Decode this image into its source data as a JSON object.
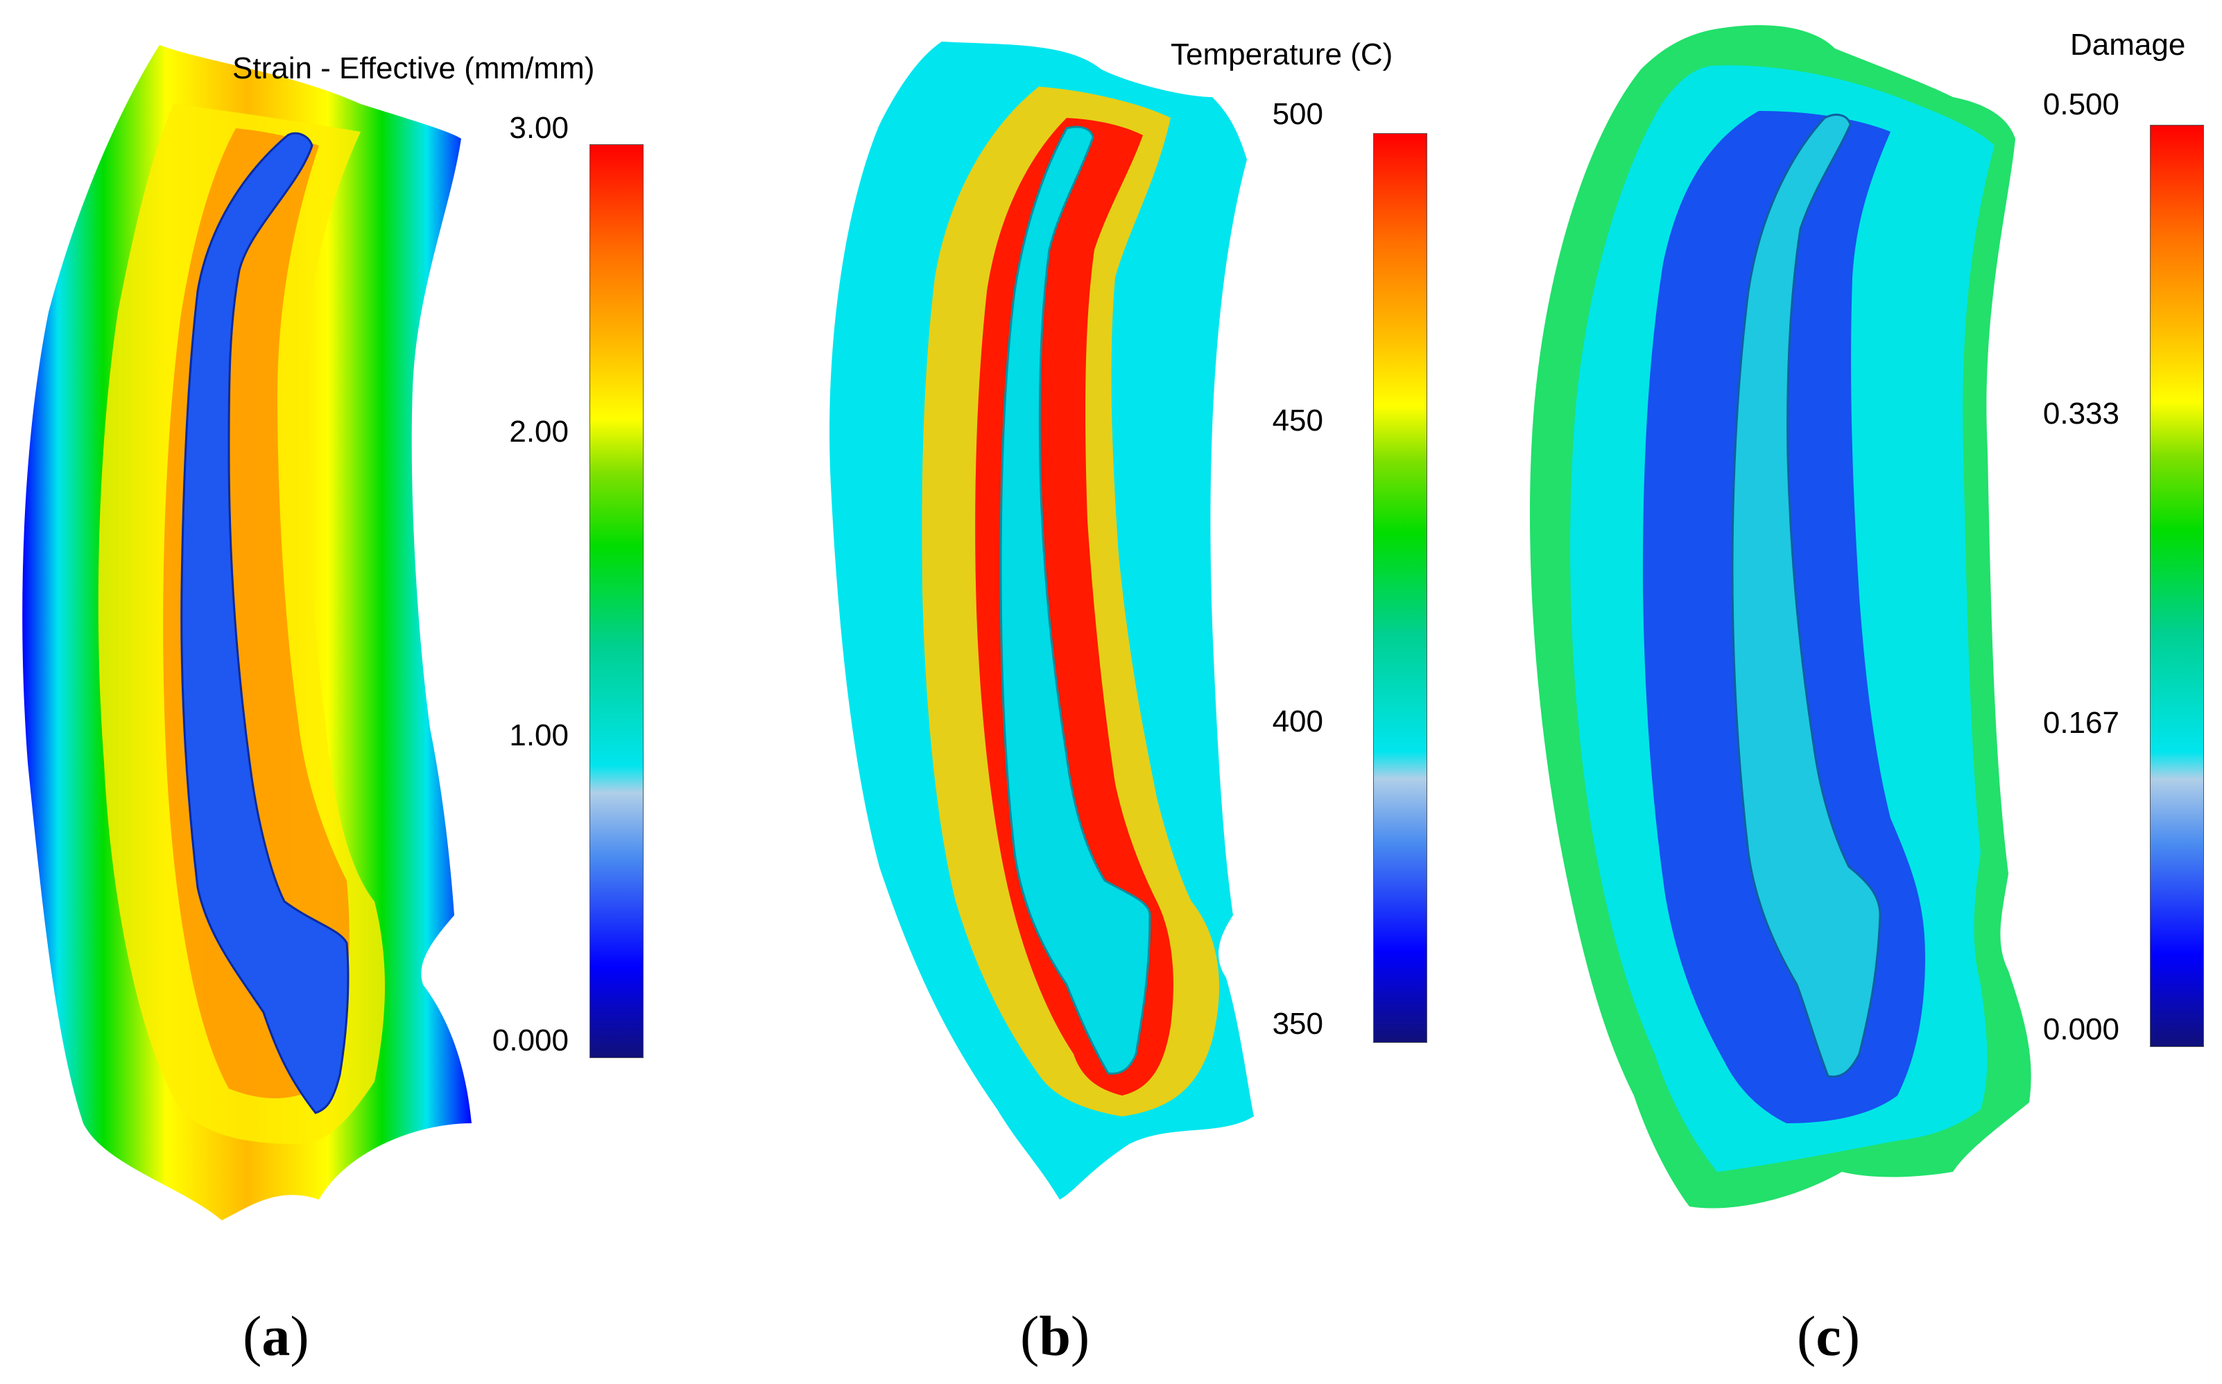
{
  "colors": {
    "scale": [
      "#10107a",
      "#0000ff",
      "#4a8cf0",
      "#b0cfe8",
      "#00e5ee",
      "#00d090",
      "#00dd00",
      "#7ee000",
      "#ffff00",
      "#ffbb00",
      "#ff7000",
      "#ff0000"
    ],
    "background": "#ffffff"
  },
  "panels": [
    {
      "id": "a",
      "legend": {
        "title": "Strain - Effective (mm/mm)",
        "ticks": [
          "3.00",
          "2.00",
          "1.00",
          "0.000"
        ]
      },
      "label": {
        "open": "(",
        "letter": "a",
        "close": ")"
      },
      "contour": {
        "outer": "blue-green",
        "mid": "yellow",
        "core": "orange-red",
        "slot": "blue"
      }
    },
    {
      "id": "b",
      "legend": {
        "title": "Temperature (C)",
        "ticks": [
          "500",
          "450",
          "400",
          "350"
        ]
      },
      "label": {
        "open": "(",
        "letter": "b",
        "close": ")"
      },
      "contour": {
        "outer": "cyan",
        "mid": "yellow-orange",
        "core": "red",
        "slot": "cyan"
      }
    },
    {
      "id": "c",
      "legend": {
        "title": "Damage",
        "ticks": [
          "0.500",
          "0.333",
          "0.167",
          "0.000"
        ]
      },
      "label": {
        "open": "(",
        "letter": "c",
        "close": ")"
      },
      "contour": {
        "outer": "green-yellow",
        "mid": "cyan",
        "core": "blue",
        "slot": "cyan"
      }
    }
  ]
}
